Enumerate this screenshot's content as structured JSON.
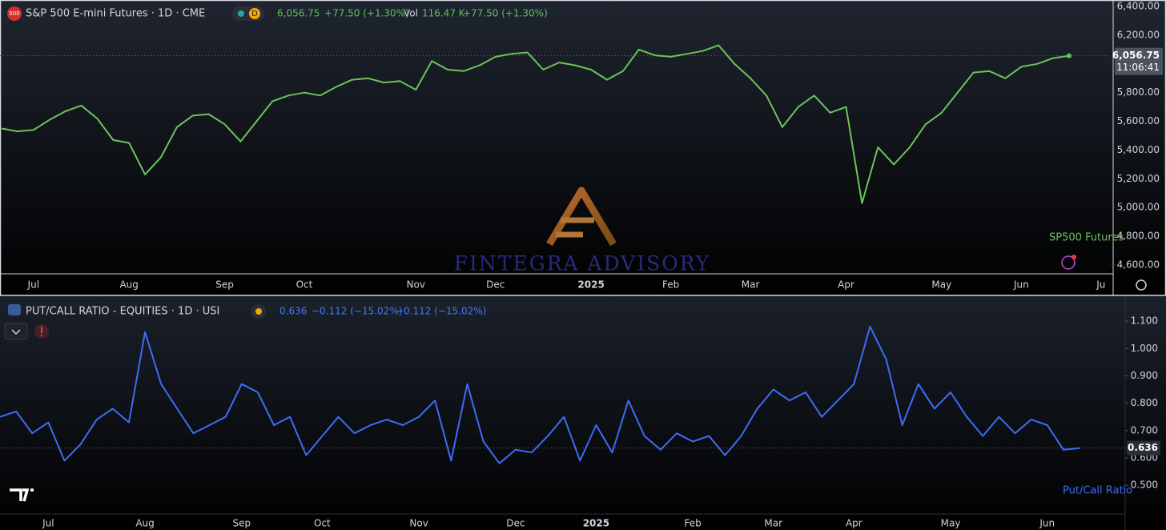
{
  "chart_data": [
    {
      "type": "line",
      "badge": "500",
      "title": "S&P 500 E-mini Futures · 1D · CME",
      "interval_badge": "D",
      "quote": {
        "last": "6,056.75",
        "change": "+77.50 (+1.30%)",
        "vol_label": "Vol",
        "vol": "116.47 K",
        "vol_change": "+77.50 (+1.30%)"
      },
      "last_price": {
        "value": 6056.75,
        "label": "6,056.75"
      },
      "countdown": "11:06:41",
      "categories": [
        null,
        null,
        "Jul",
        null,
        null,
        null,
        null,
        null,
        "Aug",
        null,
        null,
        null,
        null,
        null,
        "Sep",
        null,
        null,
        null,
        null,
        "Oct",
        null,
        null,
        null,
        null,
        null,
        null,
        "Nov",
        null,
        null,
        null,
        null,
        "Dec",
        null,
        null,
        null,
        null,
        null,
        "2025",
        null,
        null,
        null,
        null,
        "Feb",
        null,
        null,
        null,
        null,
        "Mar",
        null,
        null,
        null,
        null,
        null,
        "Apr",
        null,
        null,
        null,
        null,
        null,
        "May",
        null,
        null,
        null,
        null,
        "Jun",
        null,
        null,
        null,
        null,
        "Ju"
      ],
      "series": [
        {
          "name": "SP500 Futures",
          "color": "#6cc35a",
          "values": [
            5550,
            5530,
            5540,
            5610,
            5670,
            5710,
            5620,
            5470,
            5450,
            5230,
            5350,
            5560,
            5640,
            5650,
            5580,
            5460,
            5600,
            5740,
            5780,
            5800,
            5780,
            5840,
            5890,
            5900,
            5870,
            5880,
            5820,
            6020,
            5960,
            5950,
            5990,
            6050,
            6070,
            6080,
            5960,
            6010,
            5990,
            5960,
            5890,
            5950,
            6100,
            6060,
            6050,
            6070,
            6090,
            6130,
            6000,
            5900,
            5780,
            5560,
            5700,
            5780,
            5660,
            5700,
            5030,
            5420,
            5300,
            5420,
            5580,
            5660,
            5800,
            5940,
            5950,
            5900,
            5980,
            6000,
            6040,
            6056.75,
            null,
            null
          ]
        }
      ],
      "ylim": [
        4544,
        6445
      ],
      "yticks": [
        {
          "value": 6400,
          "label": "6,400.00"
        },
        {
          "value": 6200,
          "label": "6,200.00"
        },
        {
          "value": 6000,
          "label": "6,000.00"
        },
        {
          "value": 5800,
          "label": "5,800.00"
        },
        {
          "value": 5600,
          "label": "5,600.00"
        },
        {
          "value": 5400,
          "label": "5,400.00"
        },
        {
          "value": 5200,
          "label": "5,200.00"
        },
        {
          "value": 5000,
          "label": "5,000.00"
        },
        {
          "value": 4800,
          "label": "4,800.00"
        },
        {
          "value": 4600,
          "label": "4,600.00"
        }
      ],
      "grid": false,
      "watermark": "FINTEGRA ADVISORY"
    },
    {
      "type": "line",
      "title": "PUT/CALL RATIO - EQUITIES · 1D · USI",
      "quote": {
        "last": "0.636",
        "change": "−0.112 (−15.02%)",
        "change2": "−0.112 (−15.02%)"
      },
      "last_price": 0.636,
      "categories": [
        null,
        null,
        null,
        "Jul",
        null,
        null,
        null,
        null,
        null,
        "Aug",
        null,
        null,
        null,
        null,
        null,
        "Sep",
        null,
        null,
        null,
        null,
        "Oct",
        null,
        null,
        null,
        null,
        null,
        "Nov",
        null,
        null,
        null,
        null,
        null,
        "Dec",
        null,
        null,
        null,
        null,
        "2025",
        null,
        null,
        null,
        null,
        null,
        "Feb",
        null,
        null,
        null,
        null,
        "Mar",
        null,
        null,
        null,
        null,
        "Apr",
        null,
        null,
        null,
        null,
        null,
        "May",
        null,
        null,
        null,
        null,
        null,
        "Jun",
        null,
        null
      ],
      "series": [
        {
          "name": "Put/Call Ratio",
          "color": "#3d6cf5",
          "values": [
            0.75,
            0.77,
            0.69,
            0.73,
            0.59,
            0.65,
            0.74,
            0.78,
            0.73,
            1.06,
            0.87,
            0.78,
            0.69,
            0.72,
            0.75,
            0.87,
            0.84,
            0.72,
            0.75,
            0.61,
            0.68,
            0.75,
            0.69,
            0.72,
            0.74,
            0.72,
            0.75,
            0.81,
            0.59,
            0.87,
            0.66,
            0.58,
            0.63,
            0.62,
            0.68,
            0.75,
            0.59,
            0.72,
            0.62,
            0.81,
            0.68,
            0.63,
            0.69,
            0.66,
            0.68,
            0.61,
            0.68,
            0.78,
            0.85,
            0.81,
            0.84,
            0.75,
            0.81,
            0.87,
            1.08,
            0.96,
            0.72,
            0.87,
            0.78,
            0.84,
            0.75,
            0.68,
            0.75,
            0.69,
            0.74,
            0.72,
            0.63,
            0.636
          ]
        }
      ],
      "ylim": [
        0.401,
        1.191
      ],
      "yticks": [
        {
          "value": 1.1,
          "label": "1.100"
        },
        {
          "value": 1.0,
          "label": "1.000"
        },
        {
          "value": 0.9,
          "label": "0.900"
        },
        {
          "value": 0.8,
          "label": "0.800"
        },
        {
          "value": 0.7,
          "label": "0.700"
        },
        {
          "value": 0.6,
          "label": "0.600"
        },
        {
          "value": 0.5,
          "label": "0.500"
        }
      ],
      "grid": false
    }
  ]
}
